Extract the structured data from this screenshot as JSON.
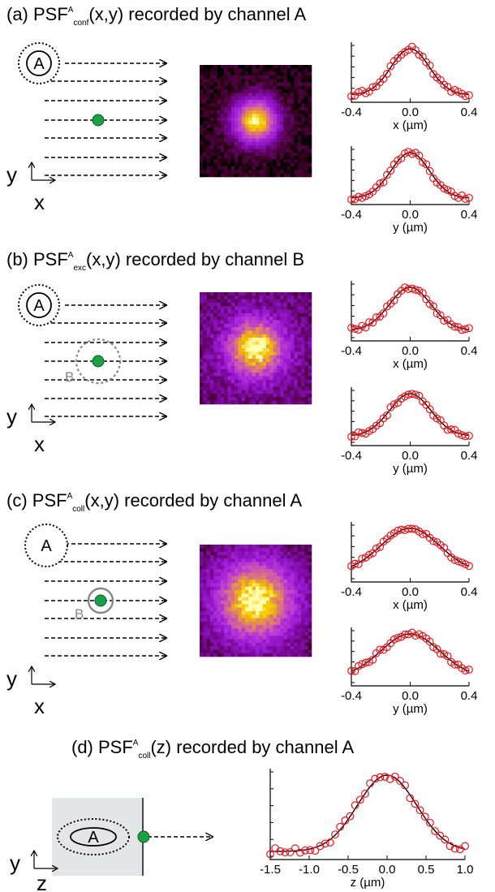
{
  "panels": [
    {
      "id": "a",
      "title": {
        "prefix": "(a) PSF",
        "sup": "A",
        "sub": "conf",
        "suffix": "(x,y) recorded by channel A"
      },
      "scan_labels": {
        "focus_a": "A",
        "focus_b": "",
        "y_axis": "y",
        "x_axis": "x"
      },
      "image_spread": 0.42,
      "image_background": 0.05,
      "plots": [
        {
          "xlabel": "x (µm)",
          "ticks": [
            "-0.4",
            "0.0",
            "0.4"
          ],
          "sigma_um": 0.13,
          "baseline": 0.05
        },
        {
          "xlabel": "y (µm)",
          "ticks": [
            "-0.4",
            "0.0",
            "0.4"
          ],
          "sigma_um": 0.13,
          "baseline": 0.03
        }
      ]
    },
    {
      "id": "b",
      "title": {
        "prefix": "(b) PSF",
        "sup": "A",
        "sub": "exc",
        "suffix": "(x,y) recorded by channel B"
      },
      "scan_labels": {
        "focus_a": "A",
        "focus_b": "B",
        "y_axis": "y",
        "x_axis": "x"
      },
      "image_spread": 0.55,
      "image_background": 0.3,
      "plots": [
        {
          "xlabel": "x (µm)",
          "ticks": [
            "-0.4",
            "0.0",
            "0.4"
          ],
          "sigma_um": 0.14,
          "baseline": 0.12
        },
        {
          "xlabel": "y (µm)",
          "ticks": [
            "-0.4",
            "0.0",
            "0.4"
          ],
          "sigma_um": 0.14,
          "baseline": 0.1
        }
      ]
    },
    {
      "id": "c",
      "title": {
        "prefix": "(c) PSF",
        "sup": "A",
        "sub": "coll",
        "suffix": "(x,y) recorded by channel A"
      },
      "scan_labels": {
        "focus_a": "A",
        "focus_b": "B",
        "y_axis": "y",
        "x_axis": "x"
      },
      "image_spread": 0.75,
      "image_background": 0.22,
      "plots": [
        {
          "xlabel": "x (µm)",
          "ticks": [
            "-0.4",
            "0.0",
            "0.4"
          ],
          "sigma_um": 0.2,
          "baseline": 0.1
        },
        {
          "xlabel": "y (µm)",
          "ticks": [
            "-0.4",
            "0.0",
            "0.4"
          ],
          "sigma_um": 0.2,
          "baseline": 0.08
        }
      ]
    },
    {
      "id": "d",
      "title": {
        "prefix": "(d) PSF",
        "sup": "A",
        "sub": "coll",
        "suffix": "(z) recorded by channel A"
      },
      "scan_labels": {
        "focus_a": "A",
        "y_axis": "y",
        "x_axis": "z"
      },
      "plot": {
        "xlabel": "z (µm)",
        "ticks": [
          "-1.5",
          "-1.0",
          "-0.5",
          "0.0",
          "0.5",
          "1.0"
        ],
        "range": [
          -1.5,
          1.0
        ],
        "sigma_um": 0.38,
        "baseline": 0.04
      }
    }
  ],
  "colors": {
    "marker": "#e8141c",
    "fit": "#000000",
    "particle": "#1aa146",
    "box": "#e4e5e6"
  }
}
